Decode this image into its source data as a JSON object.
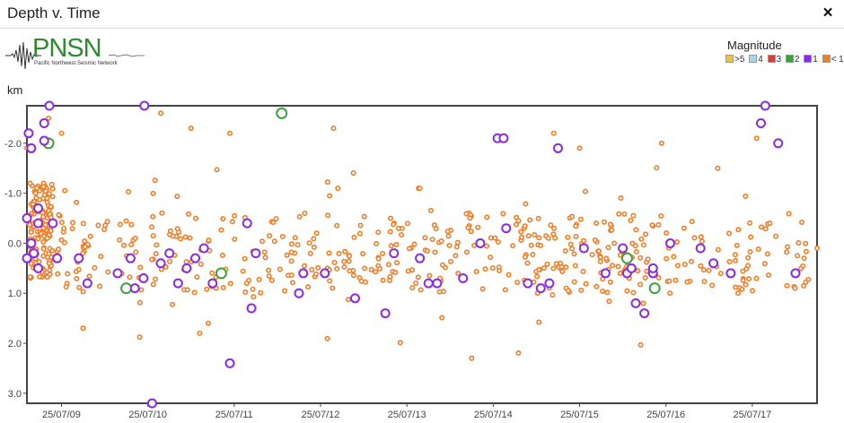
{
  "window": {
    "title": "Depth v. Time",
    "close_icon": "×"
  },
  "logo": {
    "text": "PNSN",
    "subtitle": "Pacific Northwest Seismic Network"
  },
  "legend": {
    "title": "Magnitude",
    "items": [
      {
        "label": ">5",
        "color": "#f0c040"
      },
      {
        "label": "4",
        "color": "#a8d4f0"
      },
      {
        "label": "3",
        "color": "#d04040"
      },
      {
        "label": "2",
        "color": "#3aa23a"
      },
      {
        "label": "1",
        "color": "#8a2be2"
      },
      {
        "label": "< 1",
        "color": "#f07e26"
      }
    ]
  },
  "chart_data": {
    "type": "scatter",
    "title": "Depth v. Time",
    "ylabel": "km",
    "xlim": [
      8.6,
      17.75
    ],
    "ylim": [
      -2.75,
      3.2
    ],
    "y_ticks": [
      -2.0,
      -1.0,
      0.0,
      1.0,
      2.0,
      3.0
    ],
    "y_tick_labels": [
      "-2.0",
      "-1.0",
      "0.0",
      "1.0",
      "2.0",
      "3.0"
    ],
    "x_ticks": [
      9,
      10,
      11,
      12,
      13,
      14,
      15,
      16,
      17
    ],
    "x_tick_labels": [
      "25/07/09",
      "25/07/10",
      "25/07/11",
      "25/07/12",
      "25/07/13",
      "25/07/14",
      "25/07/15",
      "25/07/16",
      "25/07/17"
    ],
    "grid": false,
    "legend_position": "top-right",
    "series": [
      {
        "name": "2",
        "color": "#3aa23a",
        "points": [
          [
            11.55,
            -2.6
          ],
          [
            8.85,
            -2.0
          ],
          [
            9.75,
            0.9
          ],
          [
            10.85,
            0.6
          ],
          [
            15.55,
            0.3
          ],
          [
            15.87,
            0.9
          ]
        ]
      },
      {
        "name": "1",
        "color": "#8a2be2",
        "points": [
          [
            8.86,
            -2.75
          ],
          [
            9.96,
            -2.75
          ],
          [
            17.15,
            -2.75
          ],
          [
            8.62,
            -2.2
          ],
          [
            8.8,
            -2.4
          ],
          [
            8.65,
            -1.9
          ],
          [
            8.8,
            -2.05
          ],
          [
            14.05,
            -2.1
          ],
          [
            14.12,
            -2.1
          ],
          [
            14.75,
            -1.9
          ],
          [
            17.1,
            -2.4
          ],
          [
            17.3,
            -2.0
          ],
          [
            8.73,
            -0.7
          ],
          [
            8.73,
            -0.4
          ],
          [
            8.6,
            -0.5
          ],
          [
            8.65,
            0.0
          ],
          [
            8.68,
            0.2
          ],
          [
            8.6,
            0.3
          ],
          [
            8.73,
            0.5
          ],
          [
            8.9,
            -0.4
          ],
          [
            9.2,
            0.3
          ],
          [
            9.65,
            0.6
          ],
          [
            9.8,
            0.3
          ],
          [
            9.85,
            0.9
          ],
          [
            9.95,
            0.7
          ],
          [
            10.15,
            0.4
          ],
          [
            10.25,
            0.2
          ],
          [
            10.35,
            0.8
          ],
          [
            10.45,
            0.5
          ],
          [
            10.55,
            0.3
          ],
          [
            10.65,
            0.1
          ],
          [
            10.75,
            0.8
          ],
          [
            10.95,
            2.4
          ],
          [
            11.15,
            -0.4
          ],
          [
            11.2,
            1.3
          ],
          [
            11.25,
            0.2
          ],
          [
            11.75,
            1.0
          ],
          [
            11.8,
            0.6
          ],
          [
            12.05,
            0.6
          ],
          [
            12.4,
            1.1
          ],
          [
            12.75,
            1.4
          ],
          [
            12.85,
            0.2
          ],
          [
            13.15,
            0.3
          ],
          [
            13.25,
            0.8
          ],
          [
            13.35,
            0.8
          ],
          [
            13.65,
            0.7
          ],
          [
            13.85,
            0.0
          ],
          [
            14.15,
            -0.3
          ],
          [
            14.4,
            0.8
          ],
          [
            14.55,
            0.9
          ],
          [
            14.65,
            0.8
          ],
          [
            15.05,
            0.1
          ],
          [
            15.3,
            0.6
          ],
          [
            15.5,
            0.1
          ],
          [
            15.55,
            0.6
          ],
          [
            15.6,
            0.5
          ],
          [
            15.65,
            1.2
          ],
          [
            15.75,
            1.4
          ],
          [
            15.85,
            0.6
          ],
          [
            15.85,
            0.5
          ],
          [
            16.05,
            0.0
          ],
          [
            16.4,
            0.1
          ],
          [
            16.55,
            0.4
          ],
          [
            16.75,
            0.6
          ],
          [
            17.5,
            0.6
          ],
          [
            10.05,
            3.2
          ],
          [
            9.3,
            0.8
          ],
          [
            8.95,
            0.3
          ]
        ]
      }
    ]
  }
}
